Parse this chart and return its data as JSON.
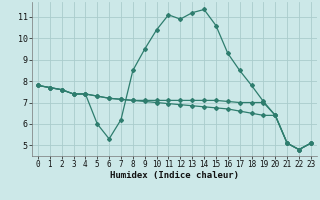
{
  "xlabel": "Humidex (Indice chaleur)",
  "background_color": "#cce8e8",
  "grid_color": "#aacccc",
  "line_color": "#2e7d6e",
  "xlim": [
    -0.5,
    23.5
  ],
  "ylim": [
    4.5,
    11.7
  ],
  "xticks": [
    0,
    1,
    2,
    3,
    4,
    5,
    6,
    7,
    8,
    9,
    10,
    11,
    12,
    13,
    14,
    15,
    16,
    17,
    18,
    19,
    20,
    21,
    22,
    23
  ],
  "yticks": [
    5,
    6,
    7,
    8,
    9,
    10,
    11
  ],
  "series": [
    {
      "x": [
        0,
        1,
        2,
        3,
        4,
        5,
        6,
        7,
        8,
        9,
        10,
        11,
        12,
        13,
        14,
        15,
        16,
        17,
        18,
        19,
        20,
        21,
        22,
        23
      ],
      "y": [
        7.8,
        7.7,
        7.6,
        7.4,
        7.4,
        6.0,
        5.3,
        6.2,
        8.5,
        9.5,
        10.4,
        11.1,
        10.9,
        11.2,
        11.35,
        10.6,
        9.3,
        8.5,
        7.8,
        7.05,
        6.4,
        5.1,
        4.8,
        5.1
      ]
    },
    {
      "x": [
        0,
        1,
        2,
        3,
        4,
        5,
        6,
        7,
        8,
        9,
        10,
        11,
        12,
        13,
        14,
        15,
        16,
        17,
        18,
        19,
        20,
        21,
        22,
        23
      ],
      "y": [
        7.8,
        7.7,
        7.6,
        7.4,
        7.4,
        7.3,
        7.2,
        7.15,
        7.1,
        7.1,
        7.1,
        7.1,
        7.1,
        7.1,
        7.1,
        7.1,
        7.05,
        7.0,
        7.0,
        7.0,
        6.4,
        5.1,
        4.8,
        5.1
      ]
    },
    {
      "x": [
        0,
        1,
        2,
        3,
        4,
        5,
        6,
        7,
        8,
        9,
        10,
        11,
        12,
        13,
        14,
        15,
        16,
        17,
        18,
        19,
        20,
        21,
        22,
        23
      ],
      "y": [
        7.8,
        7.7,
        7.6,
        7.4,
        7.4,
        7.3,
        7.2,
        7.15,
        7.1,
        7.05,
        7.0,
        6.95,
        6.9,
        6.85,
        6.8,
        6.75,
        6.7,
        6.6,
        6.5,
        6.4,
        6.4,
        5.1,
        4.8,
        5.1
      ]
    }
  ]
}
